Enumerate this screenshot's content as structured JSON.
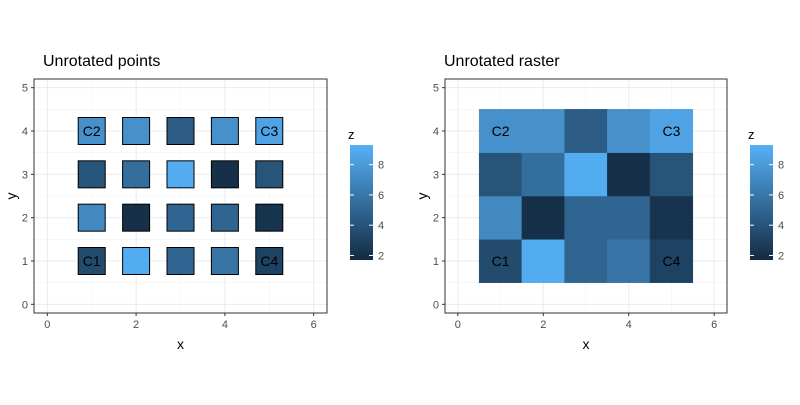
{
  "chart_data": [
    {
      "type": "scatter",
      "title": "Unrotated points",
      "xlabel": "x",
      "ylabel": "y",
      "xlim": [
        -0.3,
        6.3
      ],
      "ylim": [
        -0.2,
        5.2
      ],
      "x_ticks": [
        0,
        2,
        4,
        6
      ],
      "y_ticks": [
        0,
        1,
        2,
        3,
        4,
        5
      ],
      "x_tick_labels": [
        "0",
        "2",
        "4",
        "6"
      ],
      "y_tick_labels": [
        "0",
        "1",
        "2",
        "3",
        "4",
        "5"
      ],
      "grid": true,
      "marker": "square",
      "points": [
        {
          "x": 1,
          "y": 1,
          "z": 3.5,
          "label": "C1"
        },
        {
          "x": 2,
          "y": 1,
          "z": 9.0,
          "label": ""
        },
        {
          "x": 3,
          "y": 1,
          "z": 5.0,
          "label": ""
        },
        {
          "x": 4,
          "y": 1,
          "z": 5.8,
          "label": ""
        },
        {
          "x": 5,
          "y": 1,
          "z": 3.0,
          "label": "C4"
        },
        {
          "x": 1,
          "y": 2,
          "z": 7.0,
          "label": ""
        },
        {
          "x": 2,
          "y": 2,
          "z": 2.0,
          "label": ""
        },
        {
          "x": 3,
          "y": 2,
          "z": 5.0,
          "label": ""
        },
        {
          "x": 4,
          "y": 2,
          "z": 5.0,
          "label": ""
        },
        {
          "x": 5,
          "y": 2,
          "z": 2.2,
          "label": ""
        },
        {
          "x": 1,
          "y": 3,
          "z": 4.0,
          "label": ""
        },
        {
          "x": 2,
          "y": 3,
          "z": 5.5,
          "label": ""
        },
        {
          "x": 3,
          "y": 3,
          "z": 9.0,
          "label": ""
        },
        {
          "x": 4,
          "y": 3,
          "z": 2.0,
          "label": ""
        },
        {
          "x": 5,
          "y": 3,
          "z": 4.0,
          "label": ""
        },
        {
          "x": 1,
          "y": 4,
          "z": 7.5,
          "label": "C2"
        },
        {
          "x": 2,
          "y": 4,
          "z": 7.5,
          "label": ""
        },
        {
          "x": 3,
          "y": 4,
          "z": 4.5,
          "label": ""
        },
        {
          "x": 4,
          "y": 4,
          "z": 7.5,
          "label": ""
        },
        {
          "x": 5,
          "y": 4,
          "z": 8.5,
          "label": "C3"
        }
      ],
      "legend": {
        "title": "z",
        "placement": "right",
        "range": [
          1.7,
          9.3
        ],
        "ticks": [
          2,
          4,
          6,
          8
        ],
        "tick_labels": [
          "2",
          "4",
          "6",
          "8"
        ],
        "color_low": "#132b43",
        "color_high": "#56b1f7"
      }
    },
    {
      "type": "heatmap",
      "title": "Unrotated raster",
      "xlabel": "x",
      "ylabel": "y",
      "xlim": [
        -0.3,
        6.3
      ],
      "ylim": [
        -0.2,
        5.2
      ],
      "x_ticks": [
        0,
        2,
        4,
        6
      ],
      "y_ticks": [
        0,
        1,
        2,
        3,
        4,
        5
      ],
      "x_tick_labels": [
        "0",
        "2",
        "4",
        "6"
      ],
      "y_tick_labels": [
        "0",
        "1",
        "2",
        "3",
        "4",
        "5"
      ],
      "grid": true,
      "cells": [
        {
          "x": 1,
          "y": 1,
          "z": 3.5,
          "label": "C1"
        },
        {
          "x": 2,
          "y": 1,
          "z": 9.0,
          "label": ""
        },
        {
          "x": 3,
          "y": 1,
          "z": 5.0,
          "label": ""
        },
        {
          "x": 4,
          "y": 1,
          "z": 5.8,
          "label": ""
        },
        {
          "x": 5,
          "y": 1,
          "z": 3.0,
          "label": "C4"
        },
        {
          "x": 1,
          "y": 2,
          "z": 7.0,
          "label": ""
        },
        {
          "x": 2,
          "y": 2,
          "z": 2.0,
          "label": ""
        },
        {
          "x": 3,
          "y": 2,
          "z": 5.0,
          "label": ""
        },
        {
          "x": 4,
          "y": 2,
          "z": 5.0,
          "label": ""
        },
        {
          "x": 5,
          "y": 2,
          "z": 2.2,
          "label": ""
        },
        {
          "x": 1,
          "y": 3,
          "z": 4.0,
          "label": ""
        },
        {
          "x": 2,
          "y": 3,
          "z": 5.5,
          "label": ""
        },
        {
          "x": 3,
          "y": 3,
          "z": 9.0,
          "label": ""
        },
        {
          "x": 4,
          "y": 3,
          "z": 2.0,
          "label": ""
        },
        {
          "x": 5,
          "y": 3,
          "z": 4.0,
          "label": ""
        },
        {
          "x": 1,
          "y": 4,
          "z": 7.5,
          "label": "C2"
        },
        {
          "x": 2,
          "y": 4,
          "z": 7.5,
          "label": ""
        },
        {
          "x": 3,
          "y": 4,
          "z": 4.5,
          "label": ""
        },
        {
          "x": 4,
          "y": 4,
          "z": 7.5,
          "label": ""
        },
        {
          "x": 5,
          "y": 4,
          "z": 8.5,
          "label": "C3"
        }
      ],
      "legend": {
        "title": "z",
        "placement": "right",
        "range": [
          1.7,
          9.3
        ],
        "ticks": [
          2,
          4,
          6,
          8
        ],
        "tick_labels": [
          "2",
          "4",
          "6",
          "8"
        ],
        "color_low": "#132b43",
        "color_high": "#56b1f7"
      }
    }
  ]
}
